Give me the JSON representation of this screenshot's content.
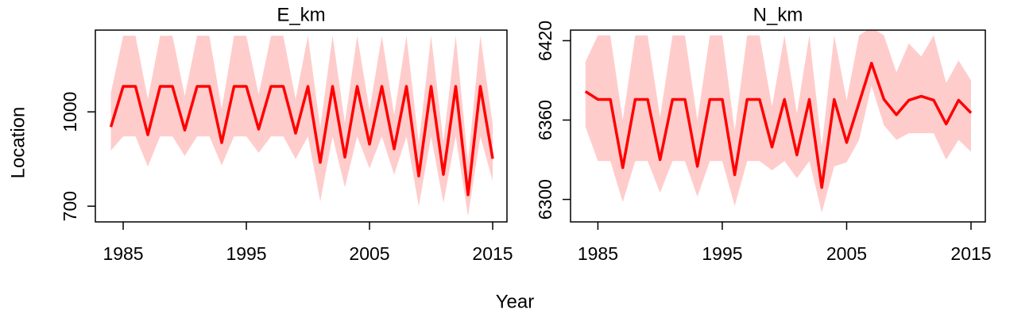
{
  "xlabel": "Year",
  "ylabel": "Location",
  "chart_data": [
    {
      "type": "line",
      "title": "E_km",
      "x": [
        1984,
        1985,
        1986,
        1987,
        1988,
        1989,
        1990,
        1991,
        1992,
        1993,
        1994,
        1995,
        1996,
        1997,
        1998,
        1999,
        2000,
        2001,
        2002,
        2003,
        2004,
        2005,
        2006,
        2007,
        2008,
        2009,
        2010,
        2011,
        2012,
        2013,
        2014,
        2015
      ],
      "series": [
        {
          "color": "#ff0000",
          "band_color": "#ffcccc",
          "values": [
            952,
            1081,
            1081,
            927,
            1081,
            1081,
            942,
            1081,
            1081,
            902,
            1081,
            1081,
            945,
            1081,
            1081,
            932,
            1081,
            839,
            1081,
            856,
            1081,
            897,
            1081,
            882,
            1081,
            796,
            1081,
            801,
            1081,
            736,
            1081,
            851
          ],
          "upper": [
            1060,
            1242,
            1242,
            1040,
            1242,
            1242,
            1050,
            1242,
            1242,
            1010,
            1242,
            1242,
            1055,
            1242,
            1242,
            1040,
            1242,
            950,
            1242,
            965,
            1242,
            1005,
            1242,
            990,
            1242,
            900,
            1242,
            905,
            1242,
            840,
            1242,
            960
          ],
          "lower": [
            877,
            922,
            922,
            826,
            922,
            922,
            860,
            922,
            922,
            830,
            922,
            922,
            870,
            922,
            922,
            850,
            922,
            715,
            922,
            760,
            922,
            820,
            922,
            800,
            922,
            700,
            922,
            710,
            922,
            668,
            922,
            780
          ]
        }
      ],
      "xlim": [
        1982.74,
        2016.16
      ],
      "xticks": [
        1985,
        1995,
        2005,
        2015
      ],
      "ylim": [
        650,
        1260
      ],
      "yticks": [
        700,
        1000
      ]
    },
    {
      "type": "line",
      "title": "N_km",
      "x": [
        1984,
        1985,
        1986,
        1987,
        1988,
        1989,
        1990,
        1991,
        1992,
        1993,
        1994,
        1995,
        1996,
        1997,
        1998,
        1999,
        2000,
        2001,
        2002,
        2003,
        2004,
        2005,
        2006,
        2007,
        2008,
        2009,
        2010,
        2011,
        2012,
        2013,
        2014,
        2015
      ],
      "series": [
        {
          "color": "#ff0000",
          "band_color": "#ffcccc",
          "values": [
            6381.6,
            6375.6,
            6375.6,
            6324,
            6375.6,
            6375.6,
            6330,
            6375.6,
            6375.6,
            6325,
            6375.6,
            6375.6,
            6318.6,
            6375.6,
            6375.6,
            6339.6,
            6375.6,
            6333.6,
            6375.6,
            6309,
            6375.6,
            6343,
            6373,
            6403,
            6375.6,
            6364,
            6375,
            6378,
            6375,
            6357,
            6375,
            6365.4
          ],
          "upper": [
            6404,
            6424,
            6424,
            6360,
            6424,
            6424,
            6362,
            6424,
            6424,
            6360,
            6424,
            6424,
            6352,
            6424,
            6424,
            6370,
            6424,
            6365,
            6424,
            6340,
            6424,
            6375,
            6424,
            6430,
            6424,
            6396,
            6418,
            6408,
            6424,
            6388,
            6405,
            6390
          ],
          "lower": [
            6355,
            6329,
            6329,
            6298,
            6329,
            6329,
            6305,
            6329,
            6329,
            6302,
            6329,
            6329,
            6295,
            6329,
            6329,
            6322,
            6329,
            6316,
            6329,
            6290,
            6325,
            6328,
            6345,
            6386,
            6356,
            6345,
            6350,
            6350,
            6350,
            6330,
            6345,
            6336
          ]
        }
      ],
      "xlim": [
        1982.8,
        2016.15
      ],
      "xticks": [
        1985,
        1995,
        2005,
        2015
      ],
      "ylim": [
        6283,
        6428
      ],
      "yticks": [
        6300,
        6360,
        6420
      ]
    }
  ]
}
